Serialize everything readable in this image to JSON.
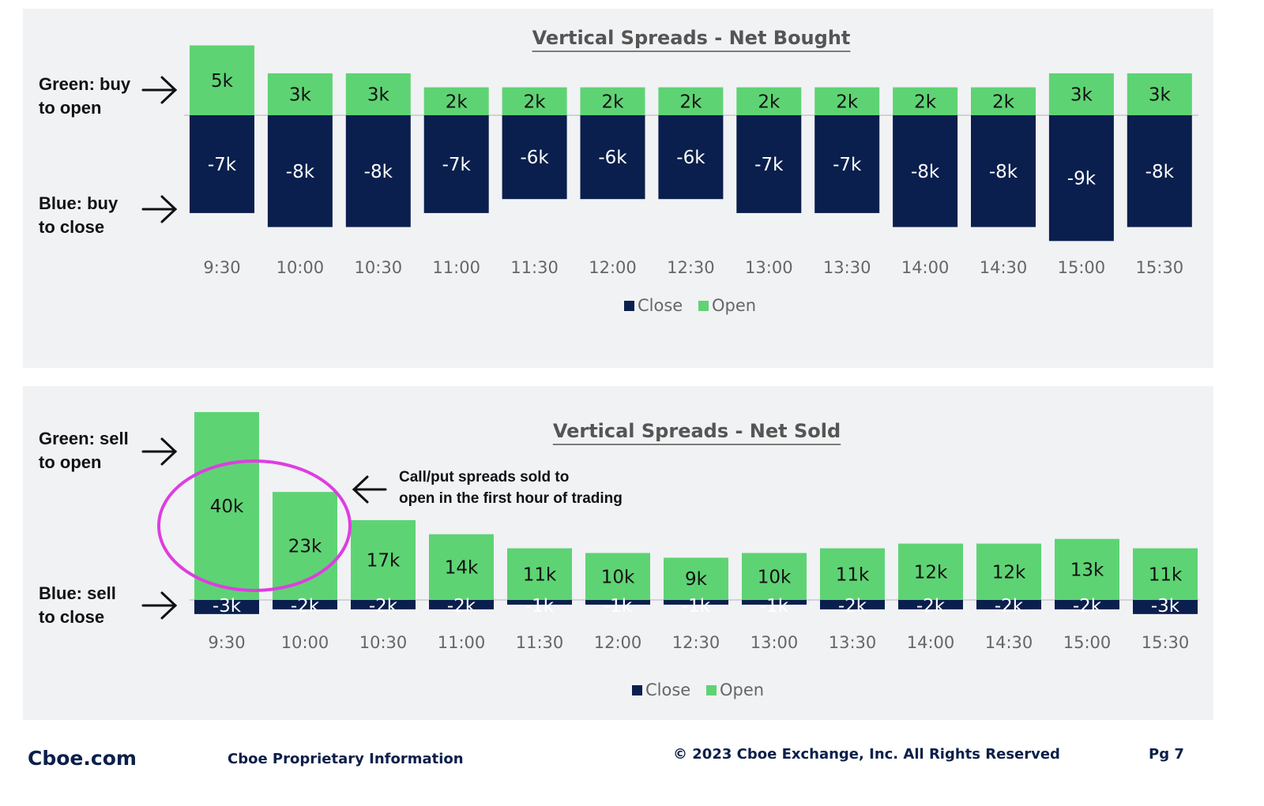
{
  "colors": {
    "open": "#5ed374",
    "close": "#0a1f4d",
    "panel": "#f1f2f4",
    "annotation_circle": "#dd3ee0",
    "tick_text": "#666666",
    "title_text": "#555555"
  },
  "chart_data": [
    {
      "type": "bar",
      "stacked": true,
      "title": "Vertical Spreads  - Net Bought",
      "categories": [
        "9:30",
        "10:00",
        "10:30",
        "11:00",
        "11:30",
        "12:00",
        "12:30",
        "13:00",
        "13:30",
        "14:00",
        "14:30",
        "15:00",
        "15:30"
      ],
      "series": [
        {
          "name": "Close",
          "values": [
            -7,
            -8,
            -8,
            -7,
            -6,
            -6,
            -6,
            -7,
            -7,
            -8,
            -8,
            -9,
            -8
          ],
          "labels": [
            "-7k",
            "-8k",
            "-8k",
            "-7k",
            "-6k",
            "-6k",
            "-6k",
            "-7k",
            "-7k",
            "-8k",
            "-8k",
            "-9k",
            "-8k"
          ]
        },
        {
          "name": "Open",
          "values": [
            5,
            3,
            3,
            2,
            2,
            2,
            2,
            2,
            2,
            2,
            2,
            3,
            3
          ],
          "labels": [
            "5k",
            "3k",
            "3k",
            "2k",
            "2k",
            "2k",
            "2k",
            "2k",
            "2k",
            "2k",
            "2k",
            "3k",
            "3k"
          ]
        }
      ],
      "unit": "k",
      "legend": "bottom-center",
      "grid": false,
      "side_labels": [
        "Green: buy\nto open",
        "Blue: buy\nto close"
      ]
    },
    {
      "type": "bar",
      "stacked": true,
      "title": "Vertical Spreads  - Net Sold",
      "categories": [
        "9:30",
        "10:00",
        "10:30",
        "11:00",
        "11:30",
        "12:00",
        "12:30",
        "13:00",
        "13:30",
        "14:00",
        "14:30",
        "15:00",
        "15:30"
      ],
      "series": [
        {
          "name": "Close",
          "values": [
            -3,
            -2,
            -2,
            -2,
            -1,
            -1,
            -1,
            -1,
            -2,
            -2,
            -2,
            -2,
            -3
          ],
          "labels": [
            "-3k",
            "-2k",
            "-2k",
            "-2k",
            "-1k",
            "-1k",
            "-1k",
            "-1k",
            "-2k",
            "-2k",
            "-2k",
            "-2k",
            "-3k"
          ]
        },
        {
          "name": "Open",
          "values": [
            40,
            23,
            17,
            14,
            11,
            10,
            9,
            10,
            11,
            12,
            12,
            13,
            11
          ],
          "labels": [
            "40k",
            "23k",
            "17k",
            "14k",
            "11k",
            "10k",
            "9k",
            "10k",
            "11k",
            "12k",
            "12k",
            "13k",
            "11k"
          ]
        }
      ],
      "unit": "k",
      "legend": "bottom-center",
      "grid": false,
      "side_labels": [
        "Green: sell\nto open",
        "Blue: sell\nto close"
      ],
      "annotation": "Call/put spreads sold to\nopen in the first hour of trading"
    }
  ],
  "footer": {
    "brand": "Cboe.com",
    "proprietary": "Cboe Proprietary Information",
    "copyright": "© 2023 Cboe Exchange, Inc. All Rights Reserved",
    "page": "Pg 7"
  }
}
